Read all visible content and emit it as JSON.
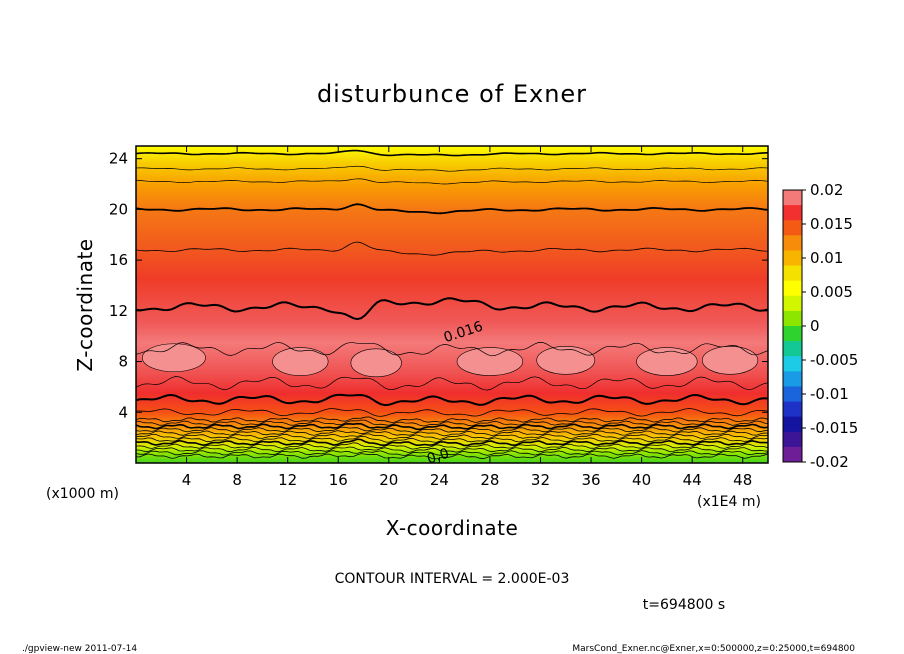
{
  "chart_data": {
    "type": "heatmap",
    "title": "disturbunce of Exner",
    "xlabel": "X-coordinate",
    "ylabel": "Z-coordinate",
    "x_unit_label": "(x1E4 m)",
    "y_unit_label": "(x1000 m)",
    "x_ticks": [
      4,
      8,
      12,
      16,
      20,
      24,
      28,
      32,
      36,
      40,
      44,
      48
    ],
    "y_ticks": [
      4,
      8,
      12,
      16,
      20,
      24
    ],
    "xlim": [
      0,
      50
    ],
    "ylim": [
      0,
      25
    ],
    "colorbar": {
      "labels": [
        "0.02",
        "0.015",
        "0.01",
        "0.005",
        "0",
        "-0.005",
        "-0.01",
        "-0.015",
        "-0.02"
      ],
      "levels": [
        0.02,
        0.015,
        0.01,
        0.005,
        0,
        -0.005,
        -0.01,
        -0.015,
        -0.02
      ],
      "range": [
        -0.02,
        0.02
      ],
      "colors": [
        "#f47a7a",
        "#f23030",
        "#f55a14",
        "#f78c0a",
        "#f9b400",
        "#f5e100",
        "#ffff00",
        "#d2f500",
        "#8ce600",
        "#2ed32e",
        "#14c896",
        "#1ecbe6",
        "#1a9be6",
        "#1a64dc",
        "#1e32c8",
        "#1414a0",
        "#3c1496",
        "#6e1e96"
      ]
    },
    "contour_labels": [
      {
        "text": "0.016",
        "x": 26,
        "y": 10
      },
      {
        "text": "0.0",
        "x": 24,
        "y": 0.2
      }
    ],
    "contour_interval_text": "CONTOUR INTERVAL = 2.000E-03",
    "time_text": "t=694800 s"
  },
  "footer": {
    "left": "./gpview-new   2011-07-14",
    "right": "MarsCond_Exner.nc@Exner,x=0:500000,z=0:25000,t=694800"
  }
}
